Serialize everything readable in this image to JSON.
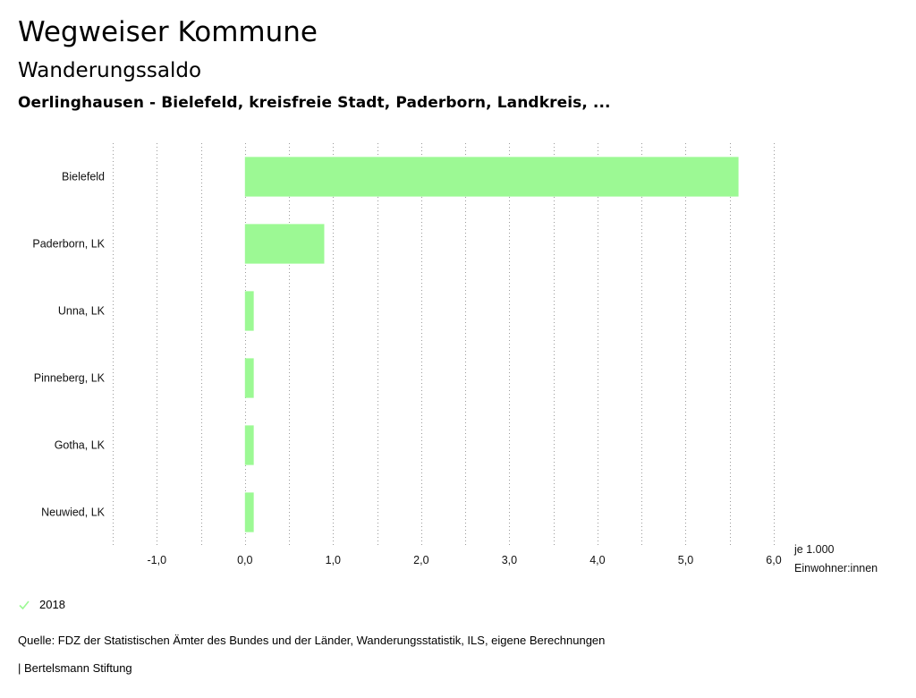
{
  "header": {
    "title": "Wegweiser Kommune",
    "subtitle": "Wanderungssaldo",
    "context": "Oerlinghausen - Bielefeld, kreisfreie Stadt, Paderborn, Landkreis, ..."
  },
  "chart_data": {
    "type": "bar",
    "orientation": "horizontal",
    "categories": [
      "Bielefeld",
      "Paderborn, LK",
      "Unna, LK",
      "Pinneberg, LK",
      "Gotha, LK",
      "Neuwied, LK"
    ],
    "series": [
      {
        "name": "2018",
        "values": [
          5.6,
          0.9,
          0.1,
          0.1,
          0.1,
          0.1
        ],
        "color": "#9cf994"
      }
    ],
    "xlim": [
      -1.5,
      6.0
    ],
    "x_ticks": [
      -1.0,
      0.0,
      1.0,
      2.0,
      3.0,
      4.0,
      5.0,
      6.0
    ],
    "x_tick_labels": [
      "-1,0",
      "0,0",
      "1,0",
      "2,0",
      "3,0",
      "4,0",
      "5,0",
      "6,0"
    ],
    "unit_label_line1": "je 1.000",
    "unit_label_line2": "Einwohner:innen",
    "grid": "vertical dotted"
  },
  "legend": {
    "label": "2018",
    "color": "#9cf994"
  },
  "footer": {
    "source": "Quelle: FDZ der Statistischen Ämter des Bundes und der Länder, Wanderungsstatistik, ILS, eigene Berechnungen",
    "credit": "| Bertelsmann Stiftung"
  }
}
